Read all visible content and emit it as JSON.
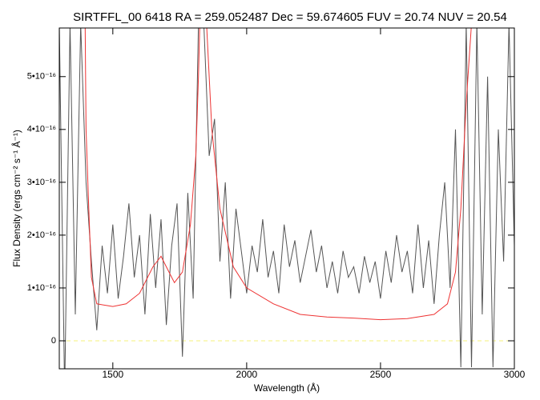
{
  "chart_data": {
    "type": "line",
    "title": "SIRTFFL_00 6418 RA = 259.052487 Dec =  59.674605 FUV = 20.74 NUV = 20.54",
    "xlabel": "Wavelength (Å)",
    "ylabel": "Flux Density (ergs cm⁻² s⁻¹ Å⁻¹)",
    "xlim": [
      1300,
      3000
    ],
    "xticks": [
      1500,
      2000,
      2500,
      3000
    ],
    "ylim": [
      -5.3e-17,
      5.92e-16
    ],
    "yticks": [
      0,
      {
        "value": 1e-16,
        "label": "1•10⁻¹⁶"
      },
      {
        "value": 2e-16,
        "label": "2•10⁻¹⁶"
      },
      {
        "value": 3e-16,
        "label": "3•10⁻¹⁶"
      },
      {
        "value": 4e-16,
        "label": "4•10⁻¹⁶"
      },
      {
        "value": 5e-16,
        "label": "5•10⁻¹⁶"
      }
    ],
    "hline": 0,
    "hline_color": "#f4f07a",
    "series": [
      {
        "color": "#555555",
        "x": [
          1300,
          1320,
          1340,
          1360,
          1380,
          1400,
          1420,
          1440,
          1460,
          1480,
          1500,
          1520,
          1540,
          1560,
          1580,
          1600,
          1620,
          1640,
          1660,
          1680,
          1700,
          1720,
          1740,
          1760,
          1780,
          1800,
          1820,
          1840,
          1860,
          1880,
          1900,
          1920,
          1940,
          1960,
          1980,
          2000,
          2020,
          2040,
          2060,
          2080,
          2100,
          2120,
          2140,
          2160,
          2180,
          2200,
          2220,
          2240,
          2260,
          2280,
          2300,
          2320,
          2340,
          2360,
          2380,
          2400,
          2420,
          2440,
          2460,
          2480,
          2500,
          2520,
          2540,
          2560,
          2580,
          2600,
          2620,
          2640,
          2660,
          2680,
          2700,
          2720,
          2740,
          2760,
          2780,
          2800,
          2820,
          2840,
          2860,
          2880,
          2900,
          2920,
          2940,
          2960,
          2980,
          3000
        ],
        "values": [
          6e-16,
          -1e-16,
          6e-16,
          5e-17,
          6e-16,
          3e-16,
          1.5e-16,
          2e-17,
          1.8e-16,
          9e-17,
          2.2e-16,
          8e-17,
          1.6e-16,
          2.6e-16,
          1.2e-16,
          2e-16,
          5e-17,
          2.4e-16,
          1e-16,
          2.3e-16,
          3e-17,
          1.8e-16,
          2.6e-16,
          -3e-17,
          2.8e-16,
          8e-17,
          6e-16,
          6e-16,
          3.5e-16,
          4.2e-16,
          1.5e-16,
          3e-16,
          8e-17,
          2.5e-16,
          1.7e-16,
          9e-17,
          1.8e-16,
          1.3e-16,
          2.3e-16,
          1.2e-16,
          1.7e-16,
          9e-17,
          2.2e-16,
          1.4e-16,
          1.9e-16,
          1.1e-16,
          1.6e-16,
          2.1e-16,
          1.3e-16,
          1.8e-16,
          1e-16,
          1.5e-16,
          9e-17,
          1.7e-16,
          1.2e-16,
          1.4e-16,
          9e-17,
          1.6e-16,
          1.1e-16,
          1.5e-16,
          8e-17,
          1.7e-16,
          1.1e-16,
          2e-16,
          1.3e-16,
          1.7e-16,
          9e-17,
          2.2e-16,
          1e-16,
          1.9e-16,
          7e-17,
          2e-16,
          3e-16,
          1e-16,
          4e-16,
          -5e-17,
          6e-16,
          -5e-17,
          6e-16,
          5e-17,
          5e-16,
          -5e-17,
          4e-16,
          1.5e-16,
          6e-16,
          1.8e-16
        ]
      },
      {
        "color": "#ee3333",
        "x": [
          1395,
          1400,
          1410,
          1420,
          1440,
          1500,
          1550,
          1600,
          1650,
          1680,
          1700,
          1730,
          1760,
          1790,
          1810,
          1820,
          1830,
          1840,
          1850,
          1870,
          1900,
          1950,
          2000,
          2100,
          2200,
          2300,
          2400,
          2500,
          2600,
          2700,
          2750,
          2780,
          2800,
          2820,
          2840,
          2850
        ],
        "values": [
          7e-16,
          4e-16,
          2.5e-16,
          1.2e-16,
          7e-17,
          6.5e-17,
          7e-17,
          9e-17,
          1.4e-16,
          1.6e-16,
          1.4e-16,
          1.1e-16,
          1.3e-16,
          2.2e-16,
          3.5e-16,
          5e-16,
          7e-16,
          7e-16,
          6e-16,
          4e-16,
          2.5e-16,
          1.4e-16,
          1e-16,
          7e-17,
          5e-17,
          4.5e-17,
          4.3e-17,
          4e-17,
          4.2e-17,
          5e-17,
          7e-17,
          1.3e-16,
          2.5e-16,
          4.5e-16,
          6e-16,
          7e-16
        ]
      }
    ]
  }
}
